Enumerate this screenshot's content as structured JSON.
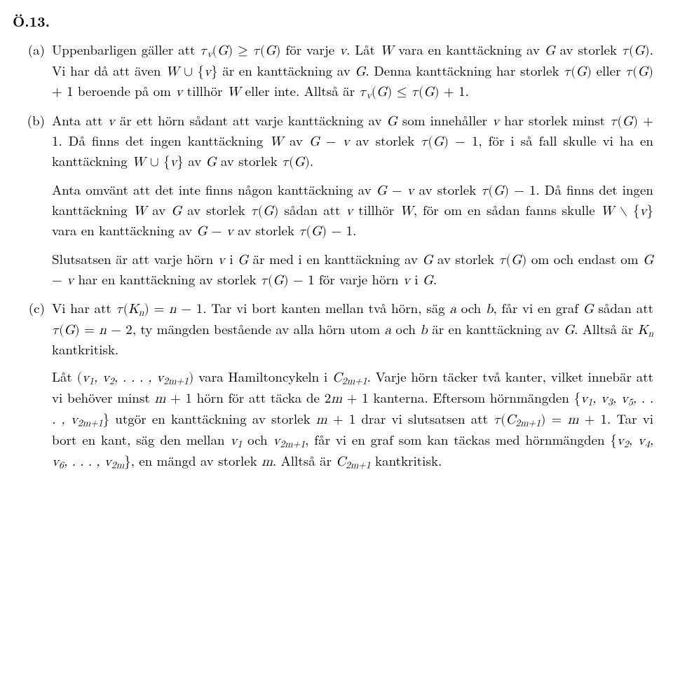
{
  "heading": "Ö.13.",
  "items": [
    {
      "label": "(a)",
      "paragraphs": [
        "Uppenbarligen gäller att <span class=\"math\">τ<span class=\"sub\">v</span><span class=\"op\">(</span>G<span class=\"op\">)</span> <span class=\"op\">≥</span> τ<span class=\"op\">(</span>G<span class=\"op\">)</span></span> för varje <span class=\"math\">v</span>. Låt <span class=\"math\">W</span> vara en kanttäckning av <span class=\"math\">G</span> av storlek <span class=\"math\">τ<span class=\"op\">(</span>G<span class=\"op\">)</span></span>. Vi har då att även <span class=\"math\">W <span class=\"op\">∪ {</span>v<span class=\"op\">}</span></span> är en kanttäckning av <span class=\"math\">G</span>. Denna kanttäckning har storlek <span class=\"math\">τ<span class=\"op\">(</span>G<span class=\"op\">)</span></span> eller <span class=\"math\">τ<span class=\"op\">(</span>G<span class=\"op\">)</span> <span class=\"op\">+ 1</span></span> beroende på om <span class=\"math\">v</span> tillhör <span class=\"math\">W</span> eller inte. Alltså är <span class=\"math\">τ<span class=\"sub\">v</span><span class=\"op\">(</span>G<span class=\"op\">)</span> <span class=\"op\">≤</span> τ<span class=\"op\">(</span>G<span class=\"op\">)</span> <span class=\"op\">+ 1</span></span>."
      ]
    },
    {
      "label": "(b)",
      "paragraphs": [
        "Anta att <span class=\"math\">v</span> är ett hörn sådant att varje kanttäckning av <span class=\"math\">G</span> som innehåller <span class=\"math\">v</span> har storlek minst <span class=\"math\">τ<span class=\"op\">(</span>G<span class=\"op\">)</span> <span class=\"op\">+ 1</span></span>. Då finns det ingen kanttäckning <span class=\"math\">W</span> av <span class=\"math\">G <span class=\"op\">−</span> v</span> av storlek <span class=\"math\">τ<span class=\"op\">(</span>G<span class=\"op\">)</span> <span class=\"op\">− 1</span></span>, för i så fall skulle vi ha en kanttäckning <span class=\"math\">W <span class=\"op\">∪ {</span>v<span class=\"op\">}</span></span> av <span class=\"math\">G</span> av storlek <span class=\"math\">τ<span class=\"op\">(</span>G<span class=\"op\">)</span></span>.",
        "Anta omvänt att det inte finns någon kanttäckning av <span class=\"math\">G <span class=\"op\">−</span> v</span> av storlek <span class=\"math\">τ<span class=\"op\">(</span>G<span class=\"op\">)</span> <span class=\"op\">− 1</span></span>. Då finns det ingen kanttäckning <span class=\"math\">W</span> av <span class=\"math\">G</span> av storlek <span class=\"math\">τ<span class=\"op\">(</span>G<span class=\"op\">)</span></span> sådan att <span class=\"math\">v</span> tillhör <span class=\"math\">W</span>, för om en sådan fanns skulle <span class=\"math\">W <span class=\"op\">∖ {</span>v<span class=\"op\">}</span></span> vara en kanttäckning av <span class=\"math\">G <span class=\"op\">−</span> v</span> av storlek <span class=\"math\">τ<span class=\"op\">(</span>G<span class=\"op\">)</span> <span class=\"op\">− 1</span></span>.",
        "Slutsatsen är att varje hörn <span class=\"math\">v</span> i <span class=\"math\">G</span> är med i en kanttäckning av <span class=\"math\">G</span> av storlek <span class=\"math\">τ<span class=\"op\">(</span>G<span class=\"op\">)</span></span> om och endast om <span class=\"math\">G <span class=\"op\">−</span> v</span> har en kanttäckning av storlek <span class=\"math\">τ<span class=\"op\">(</span>G<span class=\"op\">)</span> <span class=\"op\">− 1</span></span> för varje hörn <span class=\"math\">v</span> i <span class=\"math\">G</span>."
      ]
    },
    {
      "label": "(c)",
      "paragraphs": [
        "Vi har att <span class=\"math\">τ<span class=\"op\">(</span>K<span class=\"sub\">n</span><span class=\"op\">)</span> <span class=\"op\">=</span> n <span class=\"op\">− 1</span></span>. Tar vi bort kanten mellan två hörn, säg <span class=\"math\">a</span> och <span class=\"math\">b</span>, får vi en graf <span class=\"math\">G</span> sådan att <span class=\"math\">τ<span class=\"op\">(</span>G<span class=\"op\">)</span> <span class=\"op\">=</span> n <span class=\"op\">− 2</span></span>, ty mängden bestående av alla hörn utom <span class=\"math\">a</span> och <span class=\"math\">b</span> är en kanttäckning av <span class=\"math\">G</span>. Alltså är <span class=\"math\">K<span class=\"sub\">n</span></span> kantkritisk.",
        "Låt <span class=\"math\"><span class=\"op\">(</span>v<span class=\"sub\">1</span>, v<span class=\"sub\">2</span>, . . . , v<span class=\"sub\">2m+1</span><span class=\"op\">)</span></span> vara Hamiltoncykeln i <span class=\"math\">C<span class=\"sub\">2m+1</span></span>. Varje hörn täcker två kanter, vilket innebär att vi behöver minst <span class=\"math\">m <span class=\"op\">+ 1</span></span> hörn för att täcka de <span class=\"math\"><span class=\"op\">2</span>m <span class=\"op\">+ 1</span></span> kanterna. Eftersom hörnmängden <span class=\"math\"><span class=\"op\">{</span>v<span class=\"sub\">1</span>, v<span class=\"sub\">3</span>, v<span class=\"sub\">5</span>, . . . , v<span class=\"sub\">2m+1</span><span class=\"op\">}</span></span> utgör en kanttäckning av storlek <span class=\"math\">m <span class=\"op\">+ 1</span></span> drar vi slutsatsen att <span class=\"math\">τ<span class=\"op\">(</span>C<span class=\"sub\">2m+1</span><span class=\"op\">)</span> <span class=\"op\">=</span> m <span class=\"op\">+ 1</span></span>. Tar vi bort en kant, säg den mellan <span class=\"math\">v<span class=\"sub\">1</span></span> och <span class=\"math\">v<span class=\"sub\">2m+1</span></span>, får vi en graf som kan täckas med hörnmängden <span class=\"math\"><span class=\"op\">{</span>v<span class=\"sub\">2</span>, v<span class=\"sub\">4</span>, v<span class=\"sub\">6</span>, . . . , v<span class=\"sub\">2m</span><span class=\"op\">}</span></span>, en mängd av storlek <span class=\"math\">m</span>. Alltså är <span class=\"math\">C<span class=\"sub\">2m+1</span></span> kantkritisk."
      ]
    }
  ]
}
